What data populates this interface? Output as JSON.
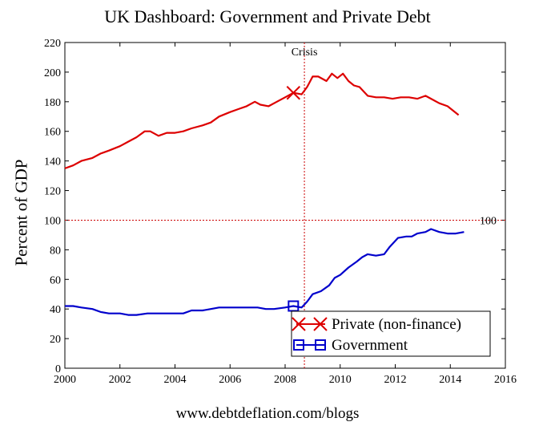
{
  "chart_data": {
    "type": "line",
    "title": "UK Dashboard: Government and Private Debt",
    "ylabel": "Percent of GDP",
    "xlabel": "",
    "footer": "www.debtdeflation.com/blogs",
    "xlim": [
      2000,
      2016
    ],
    "ylim": [
      0,
      220
    ],
    "x_ticks": [
      2000,
      2002,
      2004,
      2006,
      2008,
      2010,
      2012,
      2014,
      2016
    ],
    "y_ticks": [
      0,
      20,
      40,
      60,
      80,
      100,
      120,
      140,
      160,
      180,
      200,
      220
    ],
    "grid": false,
    "legend_position": "bottom-right",
    "reference_lines": [
      {
        "axis": "x",
        "value": 2008.7,
        "label": "Crisis",
        "color": "#cc0000"
      },
      {
        "axis": "y",
        "value": 100,
        "label": "100",
        "color": "#cc0000"
      }
    ],
    "series": [
      {
        "name": "Private (non-finance)",
        "color": "#dd0000",
        "marker": "x",
        "marker_x": [
          2008.3
        ],
        "x": [
          2000.0,
          2000.3,
          2000.6,
          2001.0,
          2001.3,
          2001.6,
          2002.0,
          2002.3,
          2002.6,
          2002.9,
          2003.1,
          2003.4,
          2003.7,
          2004.0,
          2004.3,
          2004.6,
          2005.0,
          2005.3,
          2005.6,
          2006.0,
          2006.3,
          2006.6,
          2006.9,
          2007.1,
          2007.4,
          2007.7,
          2008.0,
          2008.3,
          2008.6,
          2008.8,
          2009.0,
          2009.2,
          2009.5,
          2009.7,
          2009.9,
          2010.1,
          2010.3,
          2010.5,
          2010.7,
          2011.0,
          2011.3,
          2011.6,
          2011.9,
          2012.2,
          2012.5,
          2012.8,
          2013.1,
          2013.3,
          2013.6,
          2013.9,
          2014.1,
          2014.3
        ],
        "y": [
          135,
          137,
          140,
          142,
          145,
          147,
          150,
          153,
          156,
          160,
          160,
          157,
          159,
          159,
          160,
          162,
          164,
          166,
          170,
          173,
          175,
          177,
          180,
          178,
          177,
          180,
          183,
          186,
          185,
          190,
          197,
          197,
          194,
          199,
          196,
          199,
          194,
          191,
          190,
          184,
          183,
          183,
          182,
          183,
          183,
          182,
          184,
          182,
          179,
          177,
          174,
          171
        ]
      },
      {
        "name": "Government",
        "color": "#0000cc",
        "marker": "square",
        "marker_x": [
          2008.3
        ],
        "x": [
          2000.0,
          2000.3,
          2000.6,
          2001.0,
          2001.3,
          2001.6,
          2002.0,
          2002.3,
          2002.6,
          2003.0,
          2003.4,
          2003.8,
          2004.0,
          2004.3,
          2004.6,
          2005.0,
          2005.3,
          2005.6,
          2006.0,
          2006.3,
          2006.6,
          2007.0,
          2007.3,
          2007.6,
          2008.0,
          2008.3,
          2008.6,
          2008.8,
          2009.0,
          2009.3,
          2009.6,
          2009.8,
          2010.0,
          2010.3,
          2010.6,
          2010.8,
          2011.0,
          2011.3,
          2011.6,
          2011.8,
          2012.1,
          2012.4,
          2012.6,
          2012.8,
          2013.1,
          2013.3,
          2013.6,
          2013.9,
          2014.2,
          2014.5
        ],
        "y": [
          42,
          42,
          41,
          40,
          38,
          37,
          37,
          36,
          36,
          37,
          37,
          37,
          37,
          37,
          39,
          39,
          40,
          41,
          41,
          41,
          41,
          41,
          40,
          40,
          41,
          42,
          41,
          45,
          50,
          52,
          56,
          61,
          63,
          68,
          72,
          75,
          77,
          76,
          77,
          82,
          88,
          89,
          89,
          91,
          92,
          94,
          92,
          91,
          91,
          92
        ]
      }
    ]
  }
}
